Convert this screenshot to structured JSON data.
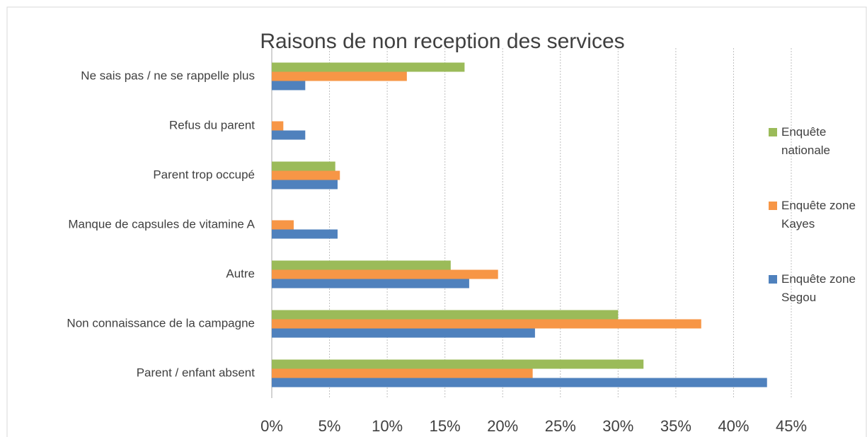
{
  "chart_data": {
    "type": "hbar",
    "title": "Raisons de non reception des services",
    "categories": [
      "Ne sais pas / ne se rappelle plus",
      "Refus du parent",
      "Parent trop occupé",
      "Manque de capsules de vitamine A",
      "Autre",
      "Non connaissance de la campagne",
      "Parent / enfant absent"
    ],
    "series": [
      {
        "name": "Enquête nationale",
        "color": "#9bbb59",
        "values": [
          16.7,
          0,
          5.5,
          0,
          15.5,
          30.0,
          32.2
        ]
      },
      {
        "name": "Enquête zone Kayes",
        "color": "#f79646",
        "values": [
          11.7,
          1.0,
          5.9,
          1.9,
          19.6,
          37.2,
          22.6
        ]
      },
      {
        "name": "Enquête zone Segou",
        "color": "#4f81bd",
        "values": [
          2.9,
          2.9,
          5.7,
          5.7,
          17.1,
          22.8,
          42.9
        ]
      }
    ],
    "xlim": [
      0,
      45
    ],
    "xticks": [
      {
        "value": 0,
        "label": "0%"
      },
      {
        "value": 5,
        "label": "5%"
      },
      {
        "value": 10,
        "label": "10%"
      },
      {
        "value": 15,
        "label": "15%"
      },
      {
        "value": 20,
        "label": "20%"
      },
      {
        "value": 25,
        "label": "25%"
      },
      {
        "value": 30,
        "label": "30%"
      },
      {
        "value": 35,
        "label": "35%"
      },
      {
        "value": 40,
        "label": "40%"
      },
      {
        "value": 45,
        "label": "45%"
      }
    ],
    "grid": true,
    "legend": "right"
  }
}
